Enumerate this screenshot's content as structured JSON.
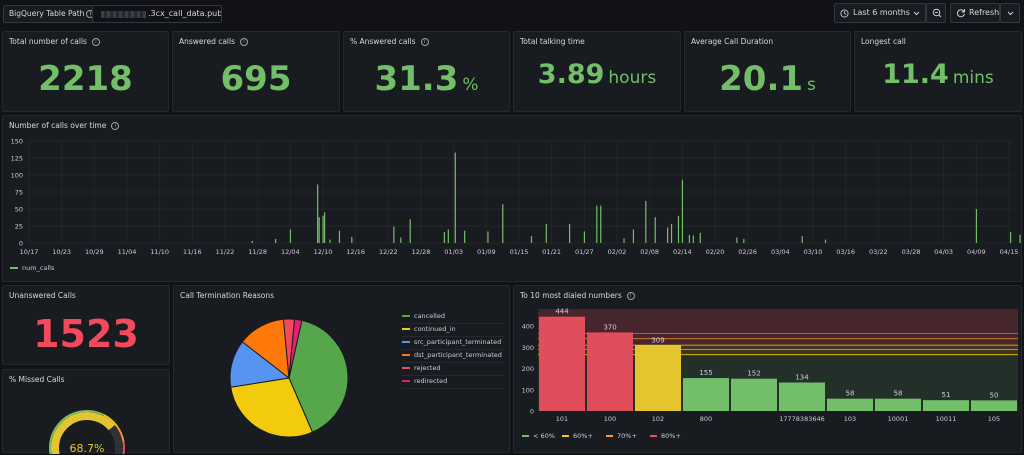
{
  "topbar": {
    "variable_label": "BigQuery Table Path",
    "variable_value": ".3cx_call_data.publ",
    "time_range": "Last 6 months",
    "refresh_label": "Refresh"
  },
  "stats": [
    {
      "title": "Total number of calls",
      "value": "2218",
      "unit": "",
      "info": true
    },
    {
      "title": "Answered calls",
      "value": "695",
      "unit": "",
      "info": true
    },
    {
      "title": "% Answered calls",
      "value": "31.3",
      "unit": "%",
      "info": true
    },
    {
      "title": "Total talking time",
      "value": "3.89",
      "unit": "hours",
      "info": false
    },
    {
      "title": "Average Call Duration",
      "value": "20.1",
      "unit": "s",
      "info": false
    },
    {
      "title": "Longest call",
      "value": "11.4",
      "unit": "mins",
      "info": false
    }
  ],
  "timeseries": {
    "title": "Number of calls over time",
    "legend": "num_calls",
    "y_ticks": [
      "0",
      "25",
      "50",
      "75",
      "100",
      "125",
      "150"
    ],
    "x_ticks": [
      "10/17",
      "10/23",
      "10/29",
      "11/04",
      "11/10",
      "11/16",
      "11/22",
      "11/28",
      "12/04",
      "12/10",
      "12/16",
      "12/22",
      "12/28",
      "01/03",
      "01/09",
      "01/15",
      "01/21",
      "01/27",
      "02/02",
      "02/08",
      "02/14",
      "02/20",
      "02/26",
      "03/04",
      "03/10",
      "03/16",
      "03/22",
      "03/28",
      "04/03",
      "04/09",
      "04/15"
    ]
  },
  "unanswered": {
    "title": "Unanswered Calls",
    "value": "1523"
  },
  "missed": {
    "title": "% Missed Calls",
    "value": "68.7%"
  },
  "termination": {
    "title": "Call Termination Reasons",
    "legend": [
      {
        "label": "cancelled",
        "color": "#56a64b"
      },
      {
        "label": "continued_in",
        "color": "#f2cc0c"
      },
      {
        "label": "src_participant_terminated",
        "color": "#5794f2"
      },
      {
        "label": "dst_participant_terminated",
        "color": "#ff780a"
      },
      {
        "label": "rejected",
        "color": "#f2495c"
      },
      {
        "label": "redirected",
        "color": "#e0226e"
      }
    ]
  },
  "chart_data": [
    {
      "type": "line",
      "title": "Number of calls over time",
      "ylim": [
        0,
        150
      ],
      "series": [
        {
          "name": "num_calls",
          "x": [
            "11/27",
            "12/01",
            "12/04",
            "12/09",
            "12/09",
            "12/10",
            "12/10",
            "12/11",
            "12/13",
            "12/15",
            "12/23",
            "12/24",
            "12/26",
            "01/01",
            "01/02",
            "01/03",
            "01/05",
            "01/09",
            "01/12",
            "01/17",
            "01/20",
            "01/24",
            "01/27",
            "01/29",
            "01/30",
            "02/03",
            "02/05",
            "02/07",
            "02/09",
            "02/11",
            "02/12",
            "02/13",
            "02/14",
            "02/15",
            "02/16",
            "02/17",
            "02/24",
            "02/25",
            "03/07",
            "03/11",
            "04/08",
            "04/14",
            "04/16"
          ],
          "values": [
            3,
            6,
            20,
            38,
            86,
            45,
            40,
            5,
            18,
            9,
            24,
            8,
            35,
            16,
            20,
            133,
            18,
            17,
            57,
            10,
            28,
            28,
            17,
            55,
            55,
            7,
            20,
            62,
            38,
            23,
            28,
            40,
            93,
            12,
            11,
            15,
            8,
            6,
            10,
            5,
            50,
            16,
            12
          ]
        }
      ]
    },
    {
      "type": "pie",
      "title": "Call Termination Reasons",
      "categories": [
        "cancelled",
        "continued_in",
        "src_participant_terminated",
        "dst_participant_terminated",
        "rejected",
        "redirected"
      ],
      "values": [
        40,
        29,
        13,
        13,
        3,
        2
      ]
    },
    {
      "type": "bar",
      "title": "To 10 most dialed numbers",
      "categories": [
        "101",
        "100",
        "102",
        "800",
        "",
        "17778383646",
        "103",
        "10001",
        "10011",
        "105"
      ],
      "values": [
        444,
        370,
        309,
        155,
        152,
        134,
        58,
        58,
        51,
        50
      ],
      "colors": [
        "#e04e5c",
        "#e04e5c",
        "#e5c52f",
        "#73bf69",
        "#73bf69",
        "#73bf69",
        "#73bf69",
        "#73bf69",
        "#73bf69",
        "#73bf69"
      ],
      "y_ticks": [
        "0",
        "100",
        "200",
        "300",
        "400"
      ],
      "ylim": [
        0,
        480
      ],
      "thresholds": [
        {
          "label": "< 60%",
          "color": "#73bf69"
        },
        {
          "label": "60%+",
          "color": "#f2cc0c"
        },
        {
          "label": "70%+",
          "color": "#ff9830"
        },
        {
          "label": "80%+",
          "color": "#f2495c"
        }
      ]
    },
    {
      "type": "gauge",
      "title": "% Missed Calls",
      "value": 68.7,
      "range": [
        0,
        100
      ]
    }
  ],
  "bars_title": "To 10 most dialed numbers"
}
